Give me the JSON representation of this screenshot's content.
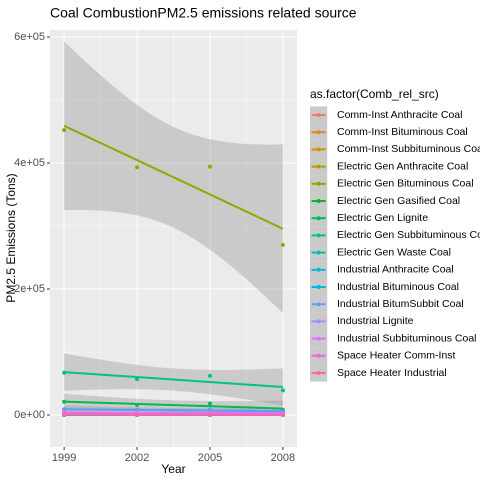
{
  "chart_data": {
    "type": "scatter",
    "title": "Coal CombustionPM2.5 emissions related source",
    "x_label": "Year",
    "y_label": "PM2.5 Emissions (Tons)",
    "legend_title": "as.factor(Comb_rel_src)",
    "legend": "right",
    "grid": true,
    "smooth": "lm",
    "x": [
      1999,
      2002,
      2005,
      2008
    ],
    "xlim": [
      1998.42,
      2008.58
    ],
    "xticks": [
      1999,
      2002,
      2005,
      2008
    ],
    "ylim": [
      -50800,
      611000
    ],
    "yticks": [
      {
        "value": 0,
        "label": "0e+00"
      },
      {
        "value": 200000,
        "label": "2e+05"
      },
      {
        "value": 400000,
        "label": "4e+05"
      },
      {
        "value": 600000,
        "label": "6e+05"
      }
    ],
    "series": [
      {
        "name": "Comm-Inst Anthracite Coal",
        "color": "#F8766D",
        "values": [
          50,
          40,
          30,
          20
        ]
      },
      {
        "name": "Comm-Inst Bituminous Coal",
        "color": "#E8851E",
        "values": [
          3000,
          2500,
          2000,
          1500
        ]
      },
      {
        "name": "Comm-Inst Subbituminous Coal",
        "color": "#D09400",
        "values": [
          200,
          150,
          100,
          100
        ]
      },
      {
        "name": "Electric Gen Anthracite Coal",
        "color": "#B2A000",
        "values": [
          1500,
          1000,
          800,
          500
        ]
      },
      {
        "name": "Electric Gen Bituminous Coal",
        "color": "#8AAB00",
        "values": [
          452000,
          393000,
          394000,
          270000
        ]
      },
      {
        "name": "Electric Gen Gasified Coal",
        "color": "#00B81F",
        "values": [
          10,
          10,
          10,
          5
        ]
      },
      {
        "name": "Electric Gen Lignite",
        "color": "#00BB4E",
        "values": [
          21000,
          16000,
          18000,
          8000
        ]
      },
      {
        "name": "Electric Gen Subbituminous Coal",
        "color": "#00C08B",
        "values": [
          67000,
          57000,
          62000,
          39000
        ]
      },
      {
        "name": "Electric Gen Waste Coal",
        "color": "#00C1A8",
        "values": [
          100,
          80,
          60,
          40
        ]
      },
      {
        "name": "Industrial Anthracite Coal",
        "color": "#00BCD3",
        "values": [
          500,
          400,
          300,
          200
        ]
      },
      {
        "name": "Industrial Bituminous Coal",
        "color": "#00B4EF",
        "values": [
          9000,
          8000,
          7000,
          6000
        ]
      },
      {
        "name": "Industrial BitumSubbit Coal",
        "color": "#619CFF",
        "values": [
          8000,
          9000,
          8500,
          5000
        ]
      },
      {
        "name": "Industrial Lignite",
        "color": "#A58AFF",
        "values": [
          1500,
          1300,
          1000,
          800
        ]
      },
      {
        "name": "Industrial Subbituminous Coal",
        "color": "#DF70F8",
        "values": [
          4000,
          4000,
          3500,
          3000
        ]
      },
      {
        "name": "Space Heater Comm-Inst",
        "color": "#FB61D7",
        "values": [
          500,
          400,
          300,
          200
        ]
      },
      {
        "name": "Space Heater Industrial",
        "color": "#FF66A8",
        "values": [
          1500,
          1000,
          800,
          600
        ]
      }
    ]
  }
}
